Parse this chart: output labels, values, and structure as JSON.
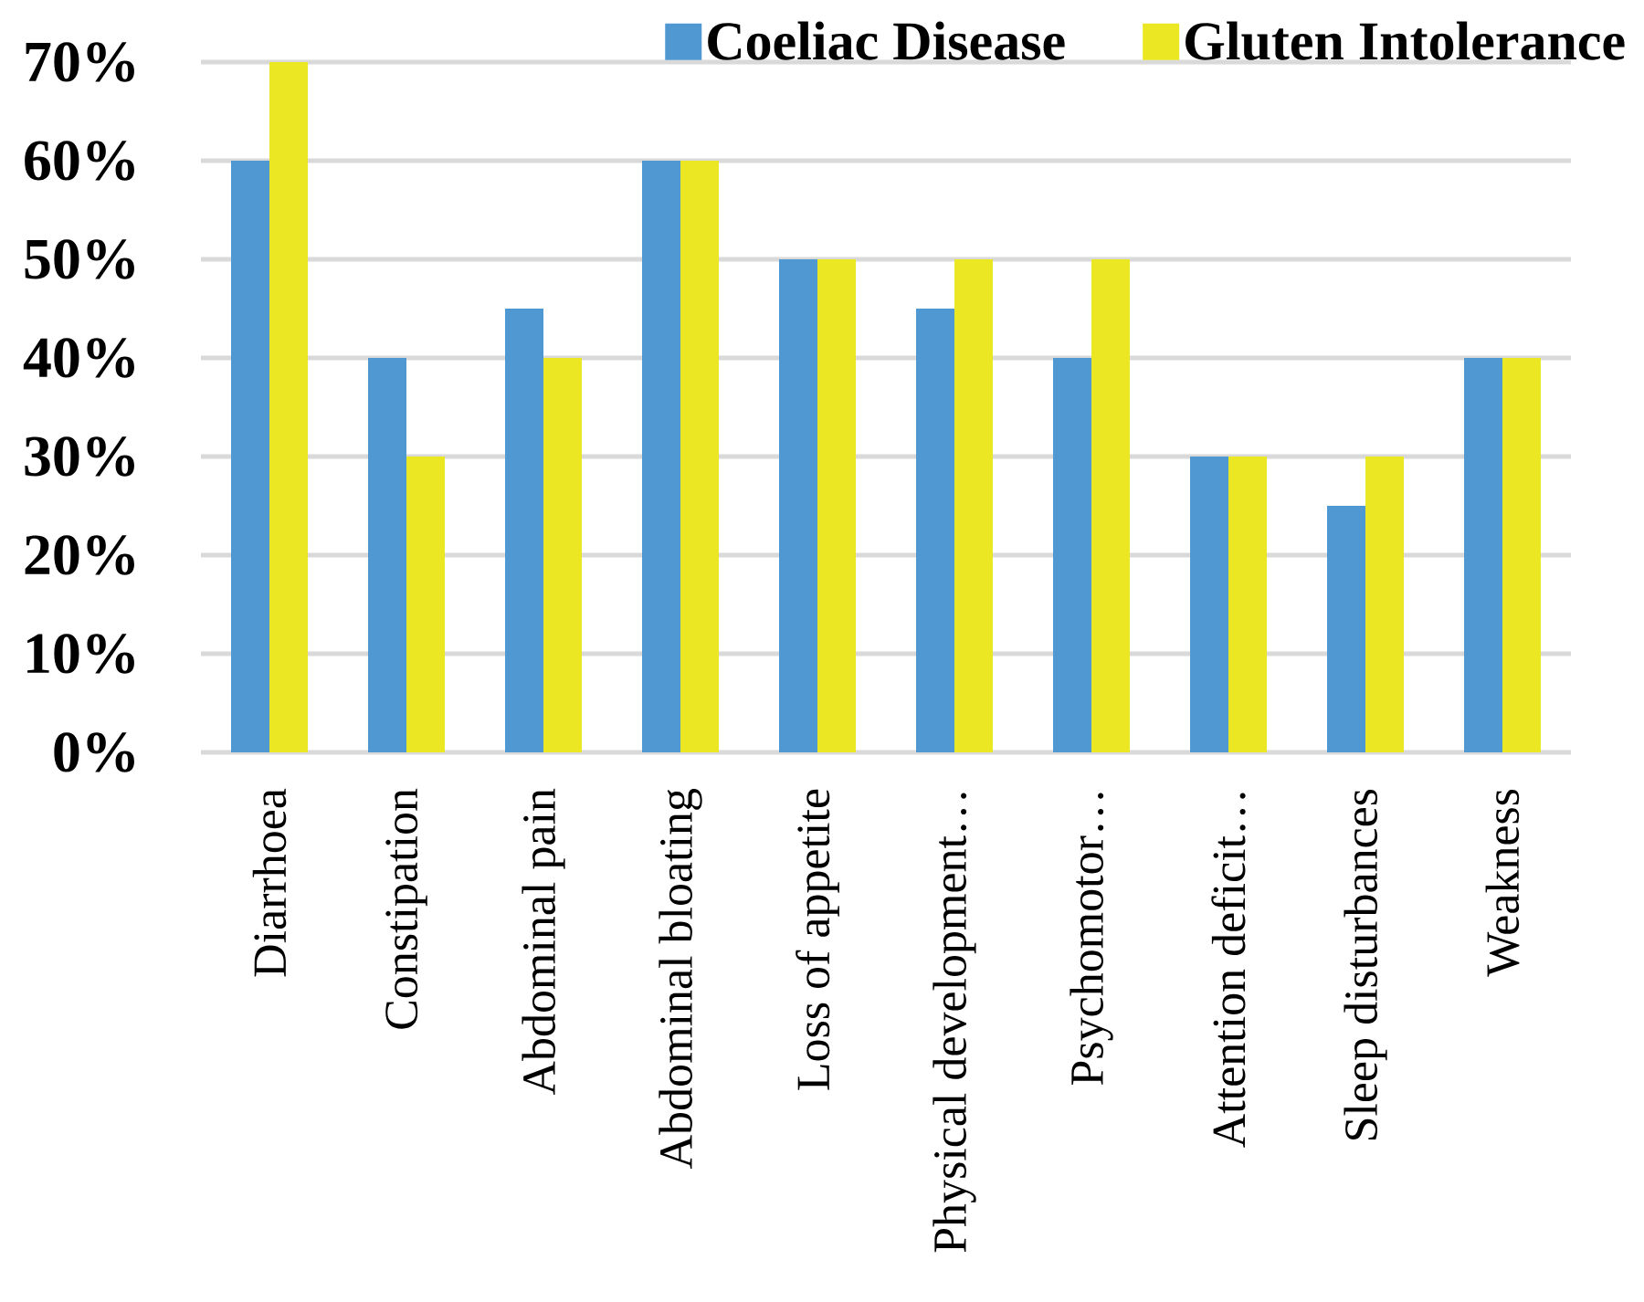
{
  "chart_data": {
    "type": "bar",
    "categories": [
      "Diarrhoea",
      "Constipation",
      "Abdominal pain",
      "Abdominal bloating",
      "Loss of appetite",
      "Physical development…",
      "Psychomotor…",
      "Attention deficit…",
      "Sleep disturbances",
      "Weakness"
    ],
    "series": [
      {
        "name": "Coeliac Disease",
        "color": "#4f98d2",
        "values": [
          60,
          40,
          45,
          60,
          50,
          45,
          40,
          30,
          25,
          40
        ]
      },
      {
        "name": "Gluten Intolerance",
        "color": "#ebe823",
        "values": [
          70,
          30,
          40,
          60,
          50,
          50,
          50,
          30,
          30,
          40
        ]
      }
    ],
    "ylim": [
      0,
      70
    ],
    "yticks": [
      {
        "value": 0,
        "label": "0%"
      },
      {
        "value": 10,
        "label": "10%"
      },
      {
        "value": 20,
        "label": "20%"
      },
      {
        "value": 30,
        "label": "30%"
      },
      {
        "value": 40,
        "label": "40%"
      },
      {
        "value": 50,
        "label": "50%"
      },
      {
        "value": 60,
        "label": "60%"
      },
      {
        "value": 70,
        "label": "70%"
      }
    ],
    "grid": "y",
    "legend": "top right"
  }
}
